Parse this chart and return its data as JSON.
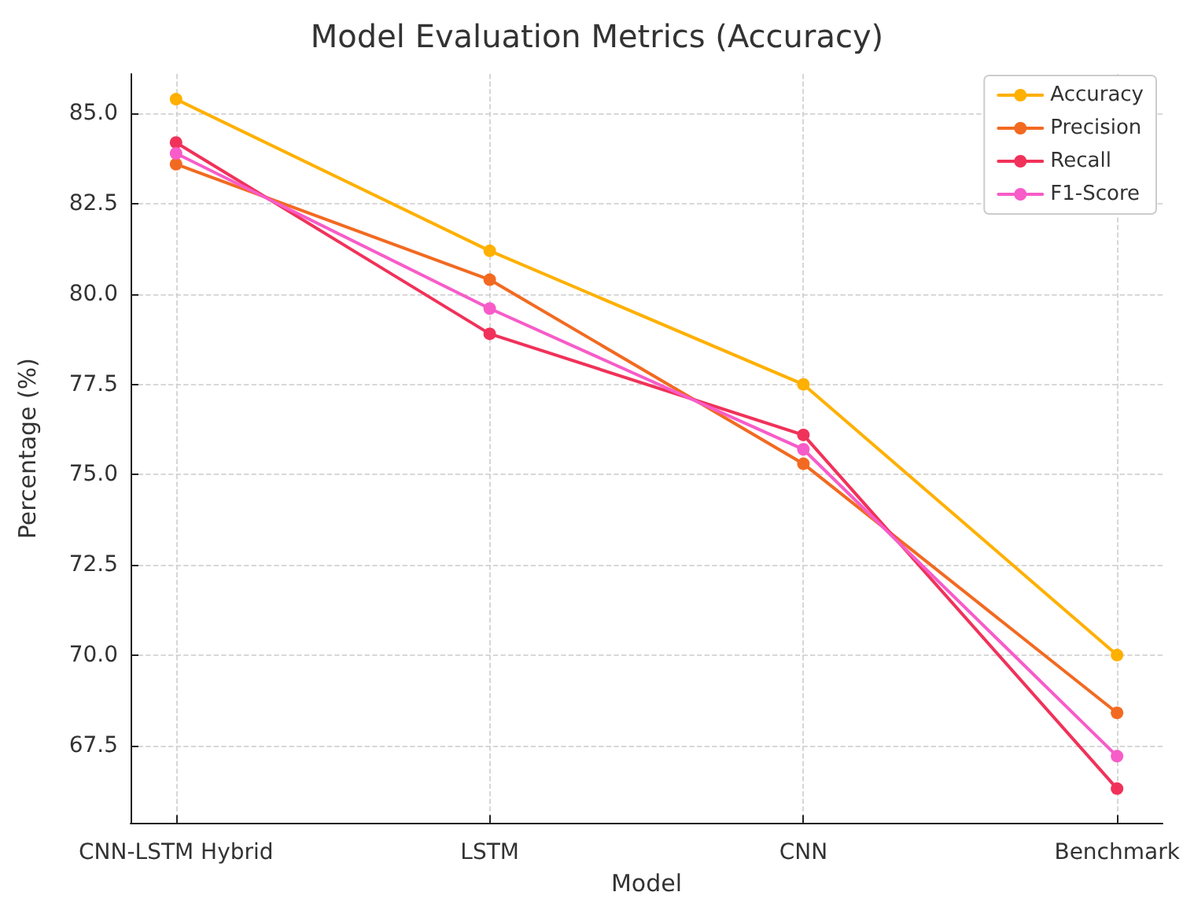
{
  "chart_data": {
    "type": "line",
    "title": "Model Evaluation Metrics (Accuracy)",
    "xlabel": "Model",
    "ylabel": "Percentage (%)",
    "categories": [
      "CNN-LSTM Hybrid",
      "LSTM",
      "CNN",
      "Benchmark"
    ],
    "series": [
      {
        "name": "Accuracy",
        "color": "#ffb000",
        "values": [
          85.4,
          81.2,
          77.5,
          70.0
        ]
      },
      {
        "name": "Precision",
        "color": "#f26a21",
        "values": [
          83.6,
          80.4,
          75.3,
          68.4
        ]
      },
      {
        "name": "Recall",
        "color": "#f0325a",
        "values": [
          84.2,
          78.9,
          76.1,
          66.3
        ]
      },
      {
        "name": "F1-Score",
        "color": "#f75cc8",
        "values": [
          83.9,
          79.6,
          75.7,
          67.2
        ]
      }
    ],
    "ylim": [
      65.35,
      86.1
    ],
    "yticks": [
      {
        "value": 67.5,
        "label": "67.5"
      },
      {
        "value": 70,
        "label": "70.0"
      },
      {
        "value": 72.5,
        "label": "72.5"
      },
      {
        "value": 75,
        "label": "75.0"
      },
      {
        "value": 77.5,
        "label": "77.5"
      },
      {
        "value": 80,
        "label": "80.0"
      },
      {
        "value": 82.5,
        "label": "82.5"
      },
      {
        "value": 85,
        "label": "85.0"
      }
    ],
    "grid": true,
    "legend": "top right",
    "marker": "circle",
    "line_style": "solid"
  }
}
